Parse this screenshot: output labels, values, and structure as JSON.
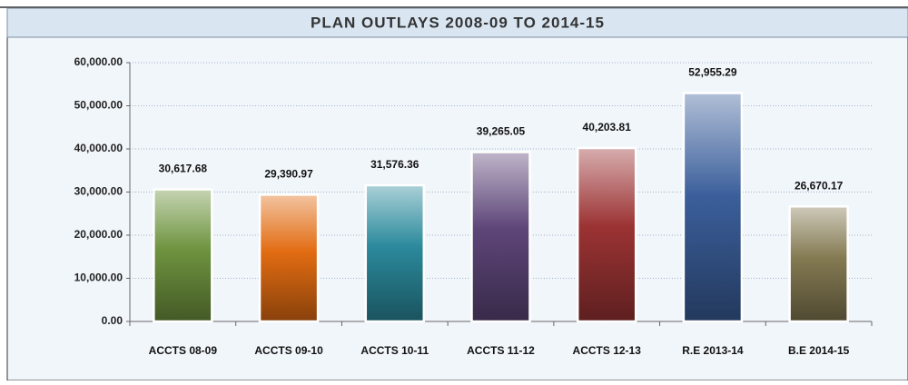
{
  "chart_data": {
    "type": "bar",
    "title": "PLAN OUTLAYS 2008-09 TO 2014-15",
    "categories": [
      "ACCTS 08-09",
      "ACCTS 09-10",
      "ACCTS 10-11",
      "ACCTS 11-12",
      "ACCTS 12-13",
      "R.E 2013-14",
      "B.E 2014-15"
    ],
    "values": [
      30617.68,
      29390.97,
      31576.36,
      39265.05,
      40203.81,
      52955.29,
      26670.17
    ],
    "value_labels": [
      "30,617.68",
      "29,390.97",
      "31,576.36",
      "39,265.05",
      "40,203.81",
      "52,955.29",
      "26,670.17"
    ],
    "colors": [
      "#6f9440",
      "#e26c12",
      "#2b8a9c",
      "#5e4679",
      "#9c3334",
      "#3b5f9b",
      "#847a52"
    ],
    "ylim": [
      0,
      60000
    ],
    "yticks": [
      {
        "value": 0,
        "label": "0.00"
      },
      {
        "value": 10000,
        "label": "10,000.00"
      },
      {
        "value": 20000,
        "label": "20,000.00"
      },
      {
        "value": 30000,
        "label": "30,000.00"
      },
      {
        "value": 40000,
        "label": "40,000.00"
      },
      {
        "value": 50000,
        "label": "50,000.00"
      },
      {
        "value": 60000,
        "label": "60,000.00"
      }
    ],
    "grid": true
  }
}
